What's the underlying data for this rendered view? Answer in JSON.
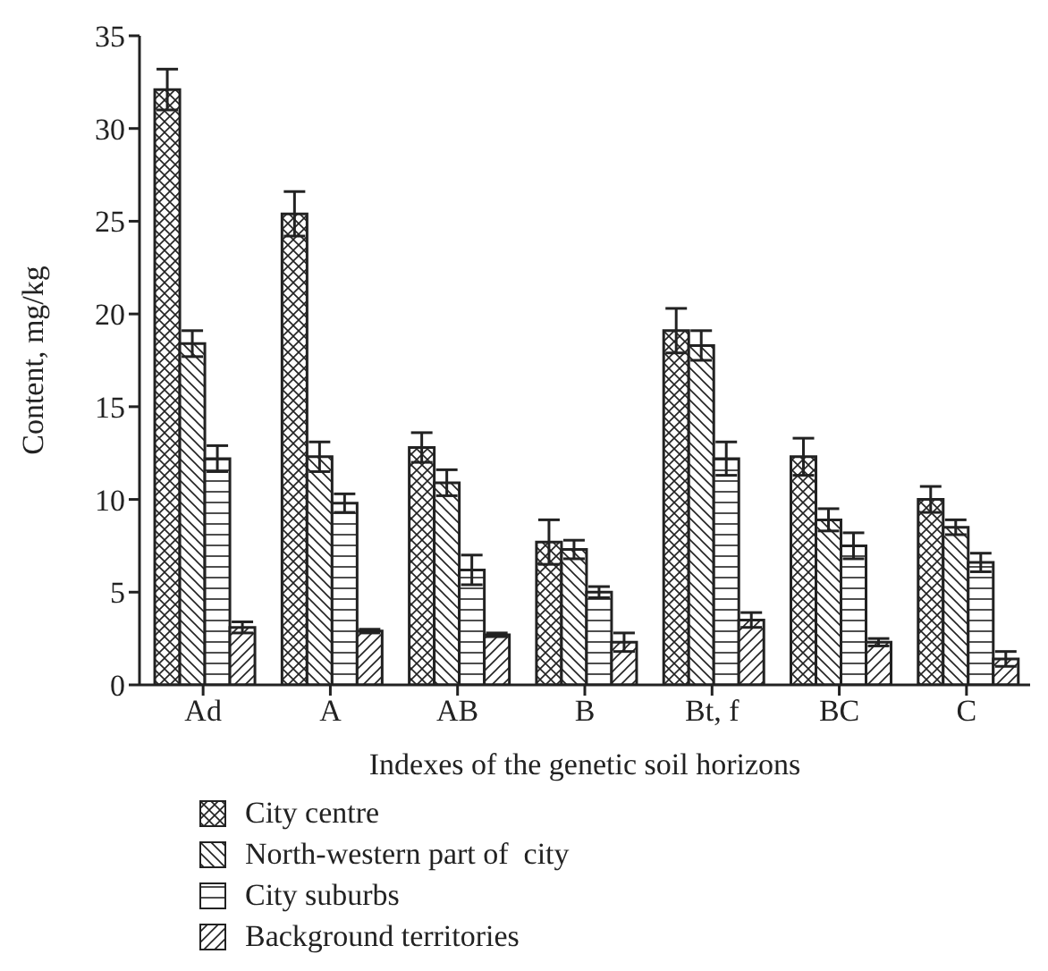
{
  "chart_data": {
    "type": "bar",
    "xlabel": "Indexes of  the genetic soil horizons",
    "ylabel": "Content, mg/kg",
    "categories": [
      "Ad",
      "A",
      "AB",
      "B",
      "Bt, f",
      "BC",
      "C"
    ],
    "series": [
      {
        "name": "City centre",
        "color": "#222222",
        "values": [
          32.1,
          25.4,
          12.8,
          7.7,
          19.1,
          12.3,
          10.0
        ],
        "errors": [
          1.1,
          1.2,
          0.8,
          1.2,
          1.2,
          1.0,
          0.7
        ]
      },
      {
        "name": "North-western part of  city",
        "color": "#222222",
        "values": [
          18.4,
          12.3,
          10.9,
          7.3,
          18.3,
          8.9,
          8.5
        ],
        "errors": [
          0.7,
          0.8,
          0.7,
          0.5,
          0.8,
          0.6,
          0.4
        ]
      },
      {
        "name": "City suburbs",
        "color": "#222222",
        "values": [
          12.2,
          9.8,
          6.2,
          5.0,
          12.2,
          7.5,
          6.6
        ],
        "errors": [
          0.7,
          0.5,
          0.8,
          0.3,
          0.9,
          0.7,
          0.5
        ]
      },
      {
        "name": "Background territories",
        "color": "#222222",
        "values": [
          3.1,
          2.9,
          2.7,
          2.3,
          3.5,
          2.3,
          1.4
        ],
        "errors": [
          0.3,
          0.1,
          0.1,
          0.5,
          0.4,
          0.2,
          0.4
        ]
      }
    ],
    "ylim": [
      0,
      35
    ],
    "yticks": [
      0,
      5,
      10,
      15,
      20,
      25,
      30,
      35
    ],
    "legend": "bottom left"
  }
}
